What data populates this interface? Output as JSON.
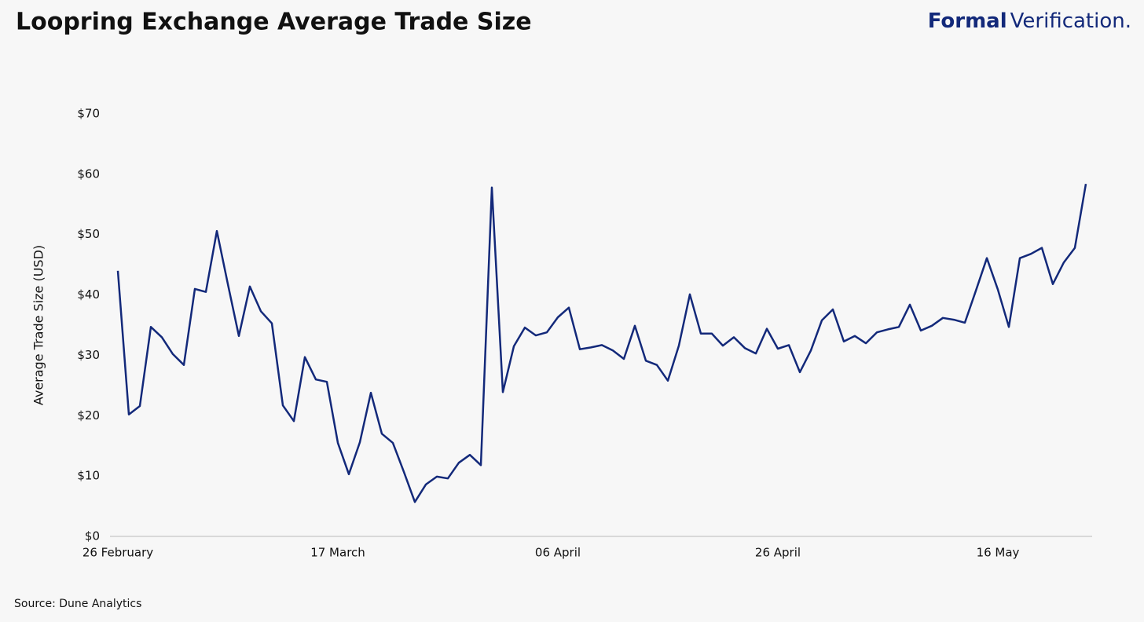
{
  "chart_data": {
    "type": "line",
    "title": "Loopring Exchange Average Trade Size",
    "brand": {
      "bold": "Formal",
      "light": "Verification."
    },
    "ylabel": "Average Trade Size (USD)",
    "source": "Source: Dune Analytics",
    "color": "#13297a",
    "grid": false,
    "categories": [
      "26 February",
      null,
      null,
      null,
      null,
      null,
      null,
      null,
      null,
      null,
      null,
      null,
      null,
      null,
      null,
      null,
      null,
      null,
      null,
      null,
      "17 March",
      null,
      null,
      null,
      null,
      null,
      null,
      null,
      null,
      null,
      null,
      null,
      null,
      null,
      null,
      null,
      null,
      null,
      null,
      null,
      "06 April",
      null,
      null,
      null,
      null,
      null,
      null,
      null,
      null,
      null,
      null,
      null,
      null,
      null,
      null,
      null,
      null,
      null,
      null,
      null,
      "26 April",
      null,
      null,
      null,
      null,
      null,
      null,
      null,
      null,
      null,
      null,
      null,
      null,
      null,
      null,
      null,
      null,
      null,
      null,
      null,
      "16 May",
      null,
      null,
      null,
      null,
      null,
      null,
      null,
      null
    ],
    "values": [
      44,
      20.2,
      21.6,
      34.7,
      33,
      30.2,
      28.4,
      41,
      40.5,
      50.6,
      41.8,
      33.2,
      41.4,
      37.3,
      35.3,
      21.7,
      19.1,
      29.7,
      26,
      25.6,
      15.5,
      10.3,
      15.6,
      23.8,
      17,
      15.5,
      10.7,
      5.7,
      8.6,
      9.9,
      9.6,
      12.2,
      13.5,
      11.8,
      57.8,
      23.9,
      31.5,
      34.6,
      33.3,
      33.8,
      36.3,
      37.9,
      31,
      31.3,
      31.7,
      30.8,
      29.4,
      34.9,
      29.1,
      28.4,
      25.8,
      31.6,
      40.1,
      33.6,
      33.6,
      31.6,
      33,
      31.2,
      30.3,
      34.4,
      31.1,
      31.7,
      27.2,
      30.8,
      35.8,
      37.6,
      32.3,
      33.2,
      32,
      33.8,
      34.3,
      34.7,
      38.4,
      34.1,
      34.9,
      36.2,
      35.9,
      35.4,
      40.7,
      46.1,
      40.9,
      34.7,
      46.1,
      46.8,
      47.8,
      41.8,
      45.4,
      47.8,
      58.4
    ],
    "ylim": [
      0,
      70
    ],
    "yticks": [
      {
        "value": 0,
        "label": "$0"
      },
      {
        "value": 10,
        "label": "$10"
      },
      {
        "value": 20,
        "label": "$20"
      },
      {
        "value": 30,
        "label": "$30"
      },
      {
        "value": 40,
        "label": "$40"
      },
      {
        "value": 50,
        "label": "$50"
      },
      {
        "value": 60,
        "label": "$60"
      },
      {
        "value": 70,
        "label": "$70"
      }
    ]
  }
}
